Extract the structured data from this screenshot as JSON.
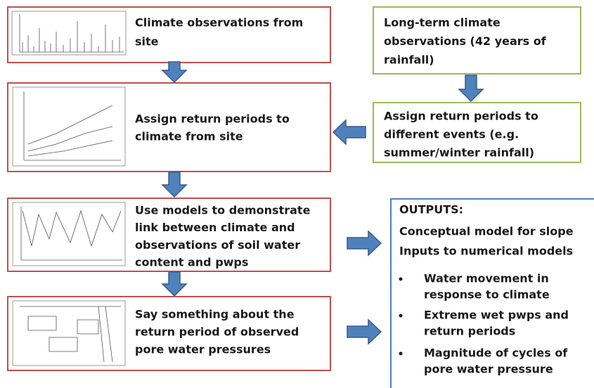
{
  "boxes": [
    {
      "lines": [
        "Climate observations from",
        "site"
      ]
    },
    {
      "lines": [
        "Long-term climate",
        "observations (42 years of",
        "rainfall)"
      ]
    },
    {
      "lines": [
        "Assign return periods to",
        "different events (e.g.",
        "summer/winter rainfall)"
      ]
    },
    {
      "lines": [
        "Assign return periods to",
        "climate from site"
      ]
    },
    {
      "lines": [
        "Use models to demonstrate",
        "link between climate and",
        "observations of soil water",
        "content and pwps"
      ]
    },
    {
      "lines": [
        "Say something about the",
        "return period of observed",
        "pore water pressures"
      ]
    }
  ],
  "outputs": {
    "title": "OUTPUTS:",
    "items": [
      "Conceptual model for slope",
      "Inputs to numerical models"
    ],
    "bullets": [
      [
        "Water movement in",
        "response to climate"
      ],
      [
        "Extreme wet pwps and",
        "return periods"
      ],
      [
        "Magnitude of cycles of",
        "pore water pressure"
      ]
    ]
  }
}
